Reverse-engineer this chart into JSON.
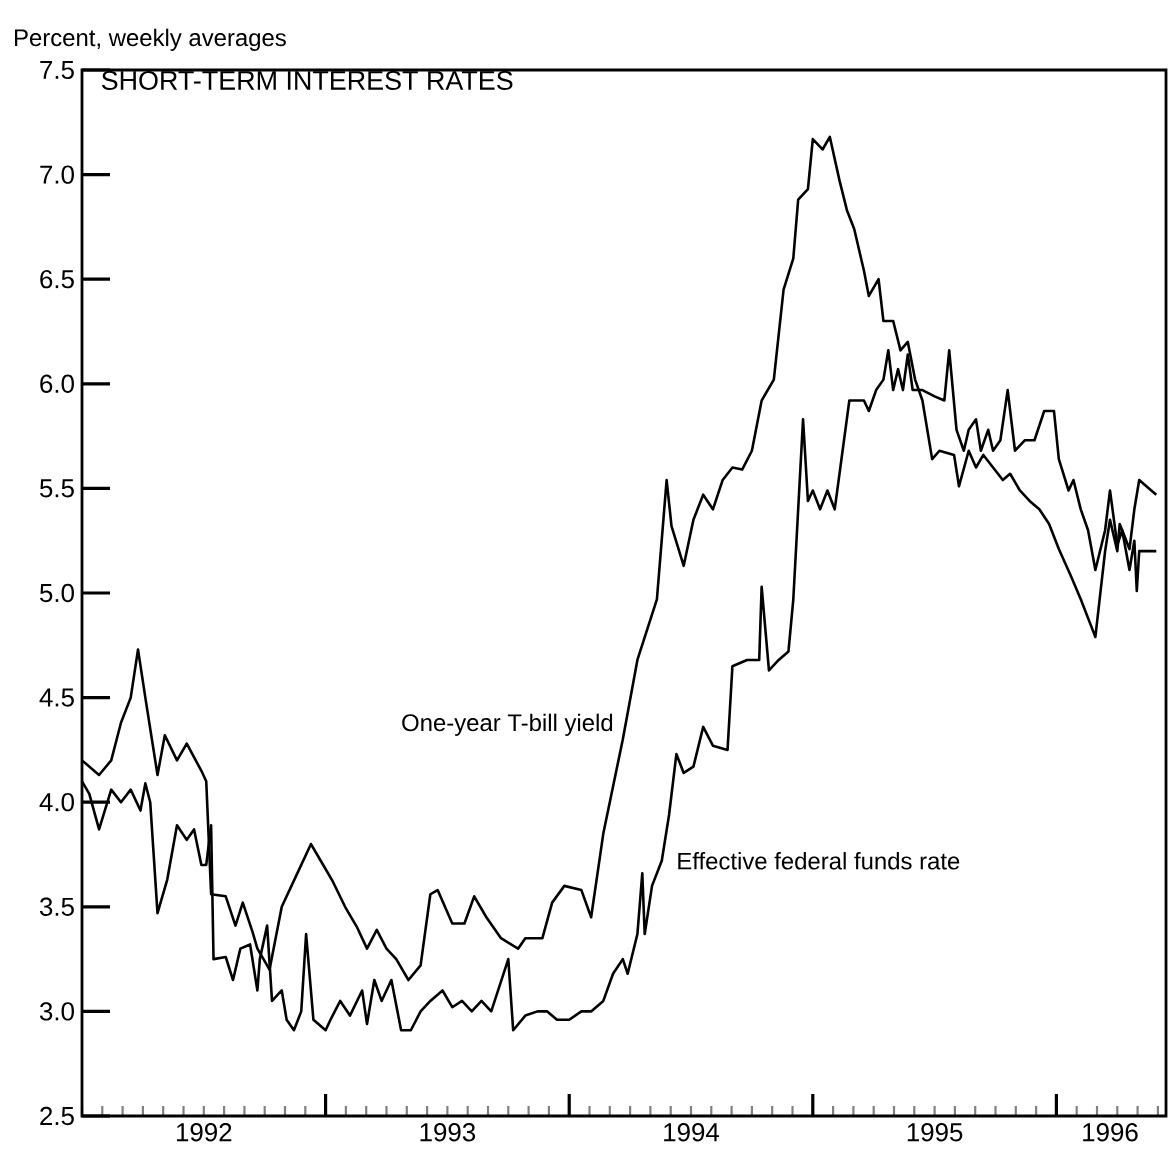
{
  "chart_data": {
    "type": "line",
    "title": "SHORT-TERM INTEREST RATES",
    "ylabel": "Percent, weekly averages",
    "xlim": [
      1992.0,
      1996.45
    ],
    "ylim": [
      2.5,
      7.5
    ],
    "xticks": [
      {
        "value": 1992.5,
        "label": "1992"
      },
      {
        "value": 1993.5,
        "label": "1993"
      },
      {
        "value": 1994.5,
        "label": "1994"
      },
      {
        "value": 1995.5,
        "label": "1995"
      },
      {
        "value": 1996.22,
        "label": "1996"
      },
      {
        "value": 1993.0,
        "label": null
      },
      {
        "value": 1994.0,
        "label": null
      },
      {
        "value": 1995.0,
        "label": null
      },
      {
        "value": 1996.0,
        "label": null
      }
    ],
    "yticks": [
      2.5,
      {
        "value": 3.0,
        "label": "3.0"
      },
      3.5,
      {
        "value": 4.0,
        "label": "4.0"
      },
      4.5,
      {
        "value": 5.0,
        "label": "5.0"
      },
      5.5,
      {
        "value": 6.0,
        "label": "6.0"
      },
      6.5,
      {
        "value": 7.0,
        "label": "7.0"
      },
      7.5
    ],
    "grid": false,
    "legend": false,
    "marker": "none",
    "line_style": "solid",
    "series": [
      {
        "name": "One-year T-bill yield",
        "color": "#000000",
        "x": [
          1992.0,
          1992.07,
          1992.12,
          1992.16,
          1992.2,
          1992.23,
          1992.26,
          1992.31,
          1992.34,
          1992.39,
          1992.43,
          1992.49,
          1992.51,
          1992.53,
          1992.59,
          1992.63,
          1992.66,
          1992.7,
          1992.72,
          1992.77,
          1992.82,
          1992.88,
          1992.94,
          1992.98,
          1993.03,
          1993.08,
          1993.13,
          1993.17,
          1993.21,
          1993.25,
          1993.29,
          1993.34,
          1993.39,
          1993.43,
          1993.46,
          1993.52,
          1993.57,
          1993.61,
          1993.66,
          1993.72,
          1993.79,
          1993.82,
          1993.89,
          1993.93,
          1993.98,
          1994.05,
          1994.09,
          1994.14,
          1994.22,
          1994.28,
          1994.36,
          1994.4,
          1994.42,
          1994.47,
          1994.51,
          1994.55,
          1994.59,
          1994.63,
          1994.67,
          1994.71,
          1994.75,
          1994.79,
          1994.84,
          1994.88,
          1994.92,
          1994.94,
          1994.98,
          1995.0,
          1995.04,
          1995.07,
          1995.11,
          1995.14,
          1995.17,
          1995.21,
          1995.23,
          1995.27,
          1995.29,
          1995.33,
          1995.36,
          1995.39,
          1995.42,
          1995.45,
          1995.49,
          1995.52,
          1995.58,
          1995.6,
          1995.64,
          1995.67,
          1995.7,
          1995.74,
          1995.78,
          1995.81,
          1995.85,
          1995.89,
          1995.93,
          1995.97,
          1996.01,
          1996.06,
          1996.1,
          1996.14,
          1996.16,
          1996.2,
          1996.22,
          1996.25,
          1996.26,
          1996.3,
          1996.32,
          1996.34,
          1996.38,
          1996.41
        ],
        "values": [
          4.2,
          4.13,
          4.2,
          4.38,
          4.5,
          4.73,
          4.5,
          4.13,
          4.32,
          4.2,
          4.28,
          4.15,
          4.1,
          3.56,
          3.55,
          3.41,
          3.52,
          3.38,
          3.3,
          3.2,
          3.5,
          3.65,
          3.8,
          3.72,
          3.62,
          3.5,
          3.4,
          3.3,
          3.39,
          3.3,
          3.25,
          3.15,
          3.22,
          3.56,
          3.58,
          3.42,
          3.42,
          3.55,
          3.45,
          3.35,
          3.3,
          3.35,
          3.35,
          3.52,
          3.6,
          3.58,
          3.45,
          3.85,
          4.3,
          4.68,
          4.97,
          5.54,
          5.32,
          5.13,
          5.35,
          5.47,
          5.4,
          5.54,
          5.6,
          5.59,
          5.68,
          5.92,
          6.02,
          6.45,
          6.6,
          6.88,
          6.93,
          7.17,
          7.12,
          7.18,
          6.97,
          6.83,
          6.74,
          6.54,
          6.42,
          6.5,
          6.3,
          6.3,
          6.16,
          6.2,
          6.02,
          5.92,
          5.64,
          5.68,
          5.66,
          5.51,
          5.68,
          5.6,
          5.66,
          5.6,
          5.54,
          5.57,
          5.49,
          5.44,
          5.4,
          5.33,
          5.21,
          5.08,
          4.97,
          4.85,
          4.79,
          5.2,
          5.35,
          5.2,
          5.33,
          5.21,
          5.4,
          5.54,
          5.5,
          5.47
        ]
      },
      {
        "name": "Effective federal funds rate",
        "color": "#000000",
        "x": [
          1992.0,
          1992.03,
          1992.07,
          1992.12,
          1992.16,
          1992.2,
          1992.24,
          1992.26,
          1992.28,
          1992.31,
          1992.35,
          1992.39,
          1992.43,
          1992.46,
          1992.49,
          1992.51,
          1992.53,
          1992.54,
          1992.59,
          1992.62,
          1992.65,
          1992.69,
          1992.72,
          1992.73,
          1992.76,
          1992.78,
          1992.82,
          1992.84,
          1992.87,
          1992.9,
          1992.92,
          1992.95,
          1993.0,
          1993.02,
          1993.06,
          1993.1,
          1993.15,
          1993.17,
          1993.2,
          1993.23,
          1993.27,
          1993.31,
          1993.35,
          1993.39,
          1993.43,
          1993.48,
          1993.52,
          1993.56,
          1993.6,
          1993.64,
          1993.68,
          1993.75,
          1993.77,
          1993.82,
          1993.87,
          1993.91,
          1993.95,
          1994.0,
          1994.05,
          1994.09,
          1994.14,
          1994.18,
          1994.22,
          1994.24,
          1994.28,
          1994.3,
          1994.31,
          1994.34,
          1994.38,
          1994.41,
          1994.44,
          1994.47,
          1994.51,
          1994.55,
          1994.59,
          1994.65,
          1994.67,
          1994.73,
          1994.78,
          1994.79,
          1994.82,
          1994.86,
          1994.9,
          1994.92,
          1994.96,
          1994.98,
          1995.0,
          1995.03,
          1995.06,
          1995.09,
          1995.15,
          1995.21,
          1995.23,
          1995.26,
          1995.29,
          1995.31,
          1995.33,
          1995.35,
          1995.37,
          1995.39,
          1995.41,
          1995.45,
          1995.5,
          1995.54,
          1995.56,
          1995.59,
          1995.62,
          1995.64,
          1995.67,
          1995.69,
          1995.72,
          1995.74,
          1995.77,
          1995.8,
          1995.83,
          1995.87,
          1995.91,
          1995.95,
          1995.99,
          1996.01,
          1996.05,
          1996.07,
          1996.1,
          1996.13,
          1996.16,
          1996.2,
          1996.22,
          1996.25,
          1996.27,
          1996.3,
          1996.32,
          1996.33,
          1996.34,
          1996.38,
          1996.41
        ],
        "values": [
          4.1,
          4.04,
          3.87,
          4.06,
          4.0,
          4.06,
          3.96,
          4.09,
          4.0,
          3.47,
          3.63,
          3.89,
          3.82,
          3.87,
          3.7,
          3.7,
          3.89,
          3.25,
          3.26,
          3.15,
          3.3,
          3.32,
          3.1,
          3.25,
          3.41,
          3.05,
          3.1,
          2.96,
          2.91,
          3.0,
          3.37,
          2.96,
          2.91,
          2.96,
          3.05,
          2.98,
          3.1,
          2.94,
          3.15,
          3.05,
          3.15,
          2.91,
          2.91,
          3.0,
          3.05,
          3.1,
          3.02,
          3.05,
          3.0,
          3.05,
          3.0,
          3.25,
          2.91,
          2.98,
          3.0,
          3.0,
          2.96,
          2.96,
          3.0,
          3.0,
          3.05,
          3.18,
          3.25,
          3.18,
          3.37,
          3.66,
          3.37,
          3.6,
          3.72,
          3.94,
          4.23,
          4.14,
          4.17,
          4.36,
          4.27,
          4.25,
          4.65,
          4.68,
          4.68,
          5.03,
          4.63,
          4.68,
          4.72,
          4.97,
          5.83,
          5.44,
          5.49,
          5.4,
          5.49,
          5.4,
          5.92,
          5.92,
          5.87,
          5.97,
          6.02,
          6.16,
          5.97,
          6.07,
          5.97,
          6.14,
          5.97,
          5.97,
          5.94,
          5.92,
          6.16,
          5.78,
          5.68,
          5.78,
          5.83,
          5.68,
          5.78,
          5.68,
          5.73,
          5.97,
          5.68,
          5.73,
          5.73,
          5.87,
          5.87,
          5.64,
          5.49,
          5.54,
          5.4,
          5.3,
          5.11,
          5.3,
          5.49,
          5.23,
          5.3,
          5.11,
          5.25,
          5.01,
          5.2,
          5.2,
          5.2
        ]
      }
    ]
  }
}
